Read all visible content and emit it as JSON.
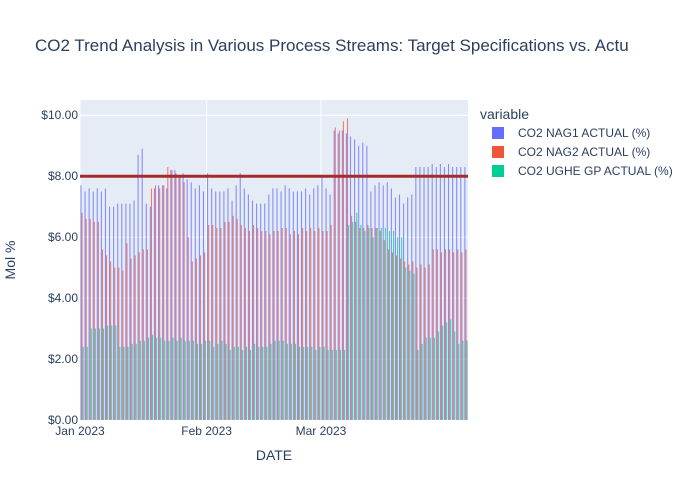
{
  "chart_data": {
    "type": "bar",
    "title": "CO2 Trend Analysis in Various Process Streams: Target Specifications vs. Actu",
    "xlabel": "DATE",
    "ylabel": "Mol %",
    "x_ticks": [
      {
        "date": "2023-01-01",
        "label": "Jan 2023"
      },
      {
        "date": "2023-02-01",
        "label": "Feb 2023"
      },
      {
        "date": "2023-03-01",
        "label": "Mar 2023"
      }
    ],
    "x_range": [
      "2023-01-01",
      "2023-04-06"
    ],
    "ylim": [
      0,
      10.5
    ],
    "y_ticks": [
      0,
      2,
      4,
      6,
      8,
      10
    ],
    "y_tick_labels": [
      "$0.00",
      "$2.00",
      "$4.00",
      "$6.00",
      "$8.00",
      "$10.00"
    ],
    "grid": true,
    "legend": {
      "title": "variable",
      "position": "right"
    },
    "target_line": {
      "value": 8.0,
      "color": "#a52a2a"
    },
    "x": [
      "2023-01-01",
      "2023-01-02",
      "2023-01-03",
      "2023-01-04",
      "2023-01-05",
      "2023-01-06",
      "2023-01-07",
      "2023-01-08",
      "2023-01-09",
      "2023-01-10",
      "2023-01-11",
      "2023-01-12",
      "2023-01-13",
      "2023-01-14",
      "2023-01-15",
      "2023-01-16",
      "2023-01-17",
      "2023-01-18",
      "2023-01-19",
      "2023-01-20",
      "2023-01-21",
      "2023-01-22",
      "2023-01-23",
      "2023-01-24",
      "2023-01-25",
      "2023-01-26",
      "2023-01-27",
      "2023-01-28",
      "2023-01-29",
      "2023-01-30",
      "2023-01-31",
      "2023-02-01",
      "2023-02-02",
      "2023-02-03",
      "2023-02-04",
      "2023-02-05",
      "2023-02-06",
      "2023-02-07",
      "2023-02-08",
      "2023-02-09",
      "2023-02-10",
      "2023-02-11",
      "2023-02-12",
      "2023-02-13",
      "2023-02-14",
      "2023-02-15",
      "2023-02-16",
      "2023-02-17",
      "2023-02-18",
      "2023-02-19",
      "2023-02-20",
      "2023-02-21",
      "2023-02-22",
      "2023-02-23",
      "2023-02-24",
      "2023-02-25",
      "2023-02-26",
      "2023-02-27",
      "2023-02-28",
      "2023-03-01",
      "2023-03-02",
      "2023-03-03",
      "2023-03-04",
      "2023-03-05",
      "2023-03-06",
      "2023-03-07",
      "2023-03-08",
      "2023-03-09",
      "2023-03-10",
      "2023-03-11",
      "2023-03-12",
      "2023-03-13",
      "2023-03-14",
      "2023-03-15",
      "2023-03-16",
      "2023-03-17",
      "2023-03-18",
      "2023-03-19",
      "2023-03-20",
      "2023-03-21",
      "2023-03-22",
      "2023-03-23",
      "2023-03-24",
      "2023-03-25",
      "2023-03-26",
      "2023-03-27",
      "2023-03-28",
      "2023-03-29",
      "2023-03-30",
      "2023-03-31",
      "2023-04-01",
      "2023-04-02",
      "2023-04-03",
      "2023-04-04",
      "2023-04-05"
    ],
    "series": [
      {
        "name": "CO2 NAG1 ACTUAL (%)",
        "color": "#636efa",
        "values": [
          7.7,
          7.5,
          7.6,
          7.5,
          7.6,
          7.5,
          7.6,
          7.0,
          7.0,
          7.1,
          7.1,
          7.1,
          7.1,
          7.2,
          8.7,
          8.9,
          7.1,
          7.0,
          7.6,
          7.7,
          7.7,
          7.6,
          8.2,
          8.2,
          8.0,
          8.1,
          7.9,
          7.8,
          7.6,
          7.7,
          7.5,
          8.1,
          7.6,
          7.5,
          7.5,
          7.5,
          7.6,
          7.2,
          7.7,
          8.1,
          7.6,
          7.4,
          7.2,
          7.1,
          7.1,
          7.1,
          7.4,
          7.6,
          7.6,
          7.5,
          7.7,
          7.6,
          7.5,
          7.5,
          7.5,
          7.6,
          7.4,
          7.6,
          7.7,
          8.0,
          7.6,
          7.4,
          9.5,
          9.4,
          9.5,
          9.4,
          9.3,
          9.2,
          9.0,
          9.1,
          9.0,
          7.5,
          7.7,
          7.8,
          7.7,
          7.8,
          7.6,
          7.3,
          7.4,
          7.1,
          7.3,
          7.4,
          8.3,
          8.3,
          8.3,
          8.3,
          8.4,
          8.3,
          8.4,
          8.3,
          8.4,
          8.3,
          8.3,
          8.3,
          8.3
        ]
      },
      {
        "name": "CO2 NAG2 ACTUAL (%)",
        "color": "#ef553b",
        "values": [
          6.8,
          6.6,
          6.6,
          6.5,
          6.5,
          5.6,
          5.4,
          5.2,
          5.0,
          5.0,
          4.9,
          5.8,
          5.3,
          5.4,
          5.5,
          5.6,
          5.6,
          7.6,
          7.7,
          7.6,
          7.7,
          8.3,
          8.2,
          8.1,
          8.0,
          7.8,
          6.0,
          5.2,
          5.3,
          5.4,
          5.5,
          6.4,
          6.4,
          6.3,
          6.3,
          6.5,
          6.5,
          6.7,
          6.6,
          6.4,
          6.3,
          6.2,
          6.4,
          6.3,
          6.2,
          6.2,
          6.1,
          6.2,
          6.2,
          6.3,
          6.3,
          6.1,
          6.2,
          6.1,
          6.3,
          6.2,
          6.3,
          6.2,
          6.3,
          6.2,
          6.2,
          6.4,
          9.6,
          9.5,
          9.8,
          9.9,
          6.7,
          6.5,
          6.3,
          6.3,
          6.4,
          6.3,
          6.3,
          6.2,
          5.9,
          5.6,
          5.5,
          5.4,
          5.3,
          5.2,
          5.1,
          5.2,
          5.0,
          5.1,
          5.0,
          5.1,
          5.6,
          5.6,
          5.5,
          5.6,
          5.6,
          5.5,
          5.6,
          5.5,
          5.6
        ]
      },
      {
        "name": "CO2 UGHE GP ACTUAL (%)",
        "color": "#00cc96",
        "values": [
          2.4,
          2.4,
          3.0,
          3.0,
          3.0,
          3.0,
          3.1,
          3.1,
          3.1,
          2.4,
          2.4,
          2.4,
          2.5,
          2.5,
          2.6,
          2.6,
          2.7,
          2.8,
          2.7,
          2.7,
          2.6,
          2.6,
          2.7,
          2.6,
          2.7,
          2.6,
          2.6,
          2.6,
          2.5,
          2.5,
          2.6,
          2.6,
          2.4,
          2.5,
          2.6,
          2.5,
          2.3,
          2.4,
          2.4,
          2.3,
          2.4,
          2.3,
          2.5,
          2.4,
          2.4,
          2.4,
          2.5,
          2.6,
          2.6,
          2.6,
          2.5,
          2.5,
          2.5,
          2.4,
          2.4,
          2.4,
          2.4,
          2.3,
          2.4,
          2.4,
          2.3,
          2.3,
          2.3,
          2.3,
          2.3,
          6.4,
          6.5,
          6.8,
          6.4,
          6.2,
          6.3,
          6.0,
          6.3,
          6.3,
          6.3,
          6.2,
          6.2,
          6.0,
          6.0,
          5.0,
          4.9,
          4.8,
          2.3,
          2.5,
          2.7,
          2.7,
          2.7,
          2.9,
          3.1,
          3.2,
          3.3,
          2.9,
          2.5,
          2.6,
          2.6
        ]
      }
    ]
  }
}
